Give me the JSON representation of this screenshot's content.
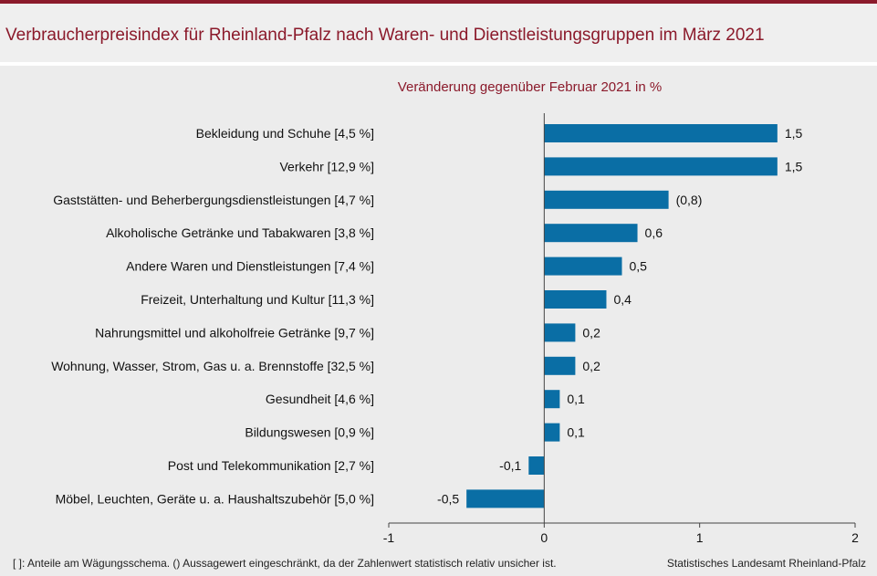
{
  "header": {
    "title": "Verbraucherpreisindex für Rheinland-Pfalz nach Waren- und Dienstleistungsgruppen im März 2021"
  },
  "footer": {
    "footnote": "[ ]: Anteile am Wägungsschema. () Aussagewert eingeschränkt, da der Zahlenwert statistisch relativ unsicher ist.",
    "source": "Statistisches Landesamt Rheinland-Pfalz"
  },
  "colors": {
    "bar": "#0a6ea5",
    "accent": "#8b1a2b"
  },
  "chart_data": {
    "type": "bar",
    "orientation": "horizontal",
    "title": "Veränderung gegenüber Februar 2021 in %",
    "categories": [
      "Bekleidung und Schuhe [4,5 %]",
      "Verkehr [12,9 %]",
      "Gaststätten- und Beherbergungsdienstleistungen [4,7 %]",
      "Alkoholische Getränke und Tabakwaren [3,8 %]",
      "Andere Waren und Dienstleistungen [7,4 %]",
      "Freizeit, Unterhaltung und Kultur [11,3 %]",
      "Nahrungsmittel und alkoholfreie Getränke [9,7 %]",
      "Wohnung, Wasser, Strom, Gas u. a. Brennstoffe [32,5 %]",
      "Gesundheit [4,6 %]",
      "Bildungswesen [0,9 %]",
      "Post und Telekommunikation [2,7 %]",
      "Möbel, Leuchten, Geräte u. a. Haushaltszubehör [5,0 %]"
    ],
    "values": [
      1.5,
      1.5,
      0.8,
      0.6,
      0.5,
      0.4,
      0.2,
      0.2,
      0.1,
      0.1,
      -0.1,
      -0.5
    ],
    "value_labels": [
      "1,5",
      "1,5",
      "(0,8)",
      "0,6",
      "0,5",
      "0,4",
      "0,2",
      "0,2",
      "0,1",
      "0,1",
      "-0,1",
      "-0,5"
    ],
    "xlim": [
      -1,
      2
    ],
    "xticks": [
      -1,
      0,
      1,
      2
    ],
    "xtick_labels": [
      "-1",
      "0",
      "1",
      "2"
    ],
    "grid": false,
    "legend": "none"
  }
}
